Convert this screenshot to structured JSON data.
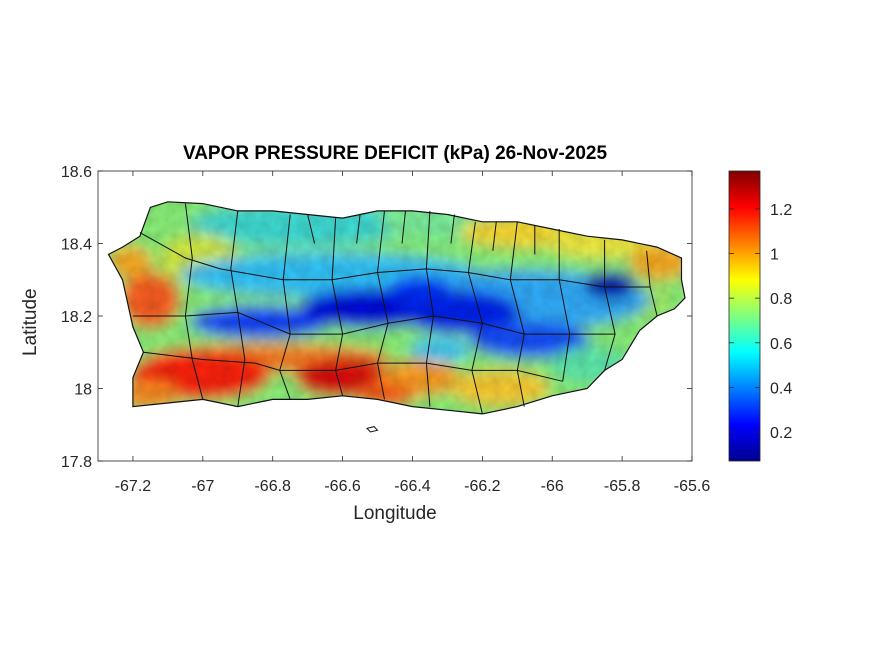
{
  "figure": {
    "title": "VAPOR PRESSURE DEFICIT (kPa) 26-Nov-2025",
    "xlabel": "Longitude",
    "ylabel": "Latitude"
  },
  "chart_data": {
    "type": "heatmap",
    "title": "VAPOR PRESSURE DEFICIT (kPa) 26-Nov-2025",
    "xlabel": "Longitude",
    "ylabel": "Latitude",
    "xlim": [
      -67.3,
      -65.6
    ],
    "ylim": [
      17.8,
      18.6
    ],
    "x_ticks": [
      -67.2,
      -67,
      -66.8,
      -66.6,
      -66.4,
      -66.2,
      -66,
      -65.8,
      -65.6
    ],
    "x_tick_labels": [
      "-67.2",
      "-67",
      "-66.8",
      "-66.6",
      "-66.4",
      "-66.2",
      "-66",
      "-65.8",
      "-65.6"
    ],
    "y_ticks": [
      17.8,
      18,
      18.2,
      18.4,
      18.6
    ],
    "y_tick_labels": [
      "17.8",
      "18",
      "18.2",
      "18.4",
      "18.6"
    ],
    "colorbar": {
      "colormap": "jet",
      "range": [
        0.07,
        1.37
      ],
      "ticks": [
        0.2,
        0.4,
        0.6,
        0.8,
        1,
        1.2
      ],
      "tick_labels": [
        "0.2",
        "0.4",
        "0.6",
        "0.8",
        "1",
        "1.2"
      ]
    },
    "grid": false,
    "island_outline": [
      [
        -67.27,
        18.37
      ],
      [
        -67.23,
        18.39
      ],
      [
        -67.18,
        18.42
      ],
      [
        -67.15,
        18.5
      ],
      [
        -67.1,
        18.515
      ],
      [
        -67.0,
        18.51
      ],
      [
        -66.9,
        18.49
      ],
      [
        -66.8,
        18.49
      ],
      [
        -66.7,
        18.48
      ],
      [
        -66.6,
        18.47
      ],
      [
        -66.5,
        18.49
      ],
      [
        -66.4,
        18.49
      ],
      [
        -66.3,
        18.48
      ],
      [
        -66.2,
        18.46
      ],
      [
        -66.1,
        18.46
      ],
      [
        -66.0,
        18.44
      ],
      [
        -65.9,
        18.42
      ],
      [
        -65.8,
        18.41
      ],
      [
        -65.7,
        18.39
      ],
      [
        -65.63,
        18.36
      ],
      [
        -65.63,
        18.3
      ],
      [
        -65.62,
        18.25
      ],
      [
        -65.65,
        18.22
      ],
      [
        -65.7,
        18.2
      ],
      [
        -65.75,
        18.16
      ],
      [
        -65.8,
        18.08
      ],
      [
        -65.85,
        18.05
      ],
      [
        -65.9,
        18.0
      ],
      [
        -66.0,
        17.98
      ],
      [
        -66.1,
        17.95
      ],
      [
        -66.2,
        17.93
      ],
      [
        -66.3,
        17.94
      ],
      [
        -66.4,
        17.95
      ],
      [
        -66.5,
        17.97
      ],
      [
        -66.6,
        17.98
      ],
      [
        -66.7,
        17.97
      ],
      [
        -66.8,
        17.97
      ],
      [
        -66.9,
        17.95
      ],
      [
        -67.0,
        17.97
      ],
      [
        -67.1,
        17.96
      ],
      [
        -67.2,
        17.95
      ],
      [
        -67.2,
        18.03
      ],
      [
        -67.17,
        18.1
      ],
      [
        -67.2,
        18.17
      ],
      [
        -67.23,
        18.3
      ],
      [
        -67.27,
        18.37
      ]
    ],
    "small_islet": [
      [
        -66.53,
        17.89
      ],
      [
        -66.51,
        17.895
      ],
      [
        -66.5,
        17.885
      ],
      [
        -66.52,
        17.88
      ]
    ],
    "municipal_boundaries": [
      [
        [
          -67.18,
          18.43
        ],
        [
          -67.05,
          18.36
        ],
        [
          -66.95,
          18.33
        ]
      ],
      [
        [
          -67.2,
          18.2
        ],
        [
          -67.05,
          18.2
        ],
        [
          -66.9,
          18.21
        ]
      ],
      [
        [
          -67.17,
          18.1
        ],
        [
          -67.0,
          18.08
        ],
        [
          -66.85,
          18.07
        ]
      ],
      [
        [
          -67.05,
          18.51
        ],
        [
          -67.03,
          18.36
        ],
        [
          -67.05,
          18.2
        ],
        [
          -67.03,
          18.08
        ],
        [
          -67.0,
          17.97
        ]
      ],
      [
        [
          -66.9,
          18.49
        ],
        [
          -66.92,
          18.33
        ],
        [
          -66.9,
          18.21
        ],
        [
          -66.88,
          18.08
        ],
        [
          -66.9,
          17.95
        ]
      ],
      [
        [
          -66.75,
          18.48
        ],
        [
          -66.77,
          18.3
        ],
        [
          -66.75,
          18.15
        ],
        [
          -66.78,
          18.05
        ],
        [
          -66.75,
          17.97
        ]
      ],
      [
        [
          -66.62,
          18.47
        ],
        [
          -66.63,
          18.3
        ],
        [
          -66.6,
          18.15
        ],
        [
          -66.62,
          18.05
        ],
        [
          -66.6,
          17.98
        ]
      ],
      [
        [
          -66.48,
          18.49
        ],
        [
          -66.5,
          18.32
        ],
        [
          -66.47,
          18.18
        ],
        [
          -66.5,
          18.07
        ],
        [
          -66.48,
          17.97
        ]
      ],
      [
        [
          -66.35,
          18.49
        ],
        [
          -66.36,
          18.33
        ],
        [
          -66.34,
          18.2
        ],
        [
          -66.36,
          18.07
        ],
        [
          -66.35,
          17.95
        ]
      ],
      [
        [
          -66.22,
          18.46
        ],
        [
          -66.24,
          18.32
        ],
        [
          -66.2,
          18.18
        ],
        [
          -66.23,
          18.05
        ],
        [
          -66.2,
          17.93
        ]
      ],
      [
        [
          -66.1,
          18.46
        ],
        [
          -66.12,
          18.3
        ],
        [
          -66.08,
          18.15
        ],
        [
          -66.1,
          18.05
        ],
        [
          -66.08,
          17.95
        ]
      ],
      [
        [
          -65.98,
          18.44
        ],
        [
          -65.98,
          18.3
        ],
        [
          -65.95,
          18.15
        ],
        [
          -65.97,
          18.02
        ]
      ],
      [
        [
          -65.85,
          18.41
        ],
        [
          -65.85,
          18.28
        ],
        [
          -65.82,
          18.15
        ],
        [
          -65.85,
          18.05
        ]
      ],
      [
        [
          -65.73,
          18.38
        ],
        [
          -65.72,
          18.28
        ],
        [
          -65.7,
          18.2
        ]
      ],
      [
        [
          -66.95,
          18.33
        ],
        [
          -66.77,
          18.3
        ],
        [
          -66.63,
          18.3
        ],
        [
          -66.5,
          18.32
        ],
        [
          -66.36,
          18.33
        ],
        [
          -66.24,
          18.32
        ],
        [
          -66.12,
          18.3
        ],
        [
          -65.98,
          18.3
        ],
        [
          -65.85,
          18.28
        ],
        [
          -65.72,
          18.28
        ]
      ],
      [
        [
          -66.9,
          18.21
        ],
        [
          -66.75,
          18.15
        ],
        [
          -66.6,
          18.15
        ],
        [
          -66.47,
          18.18
        ],
        [
          -66.34,
          18.2
        ],
        [
          -66.2,
          18.18
        ],
        [
          -66.08,
          18.15
        ],
        [
          -65.95,
          18.15
        ],
        [
          -65.82,
          18.15
        ]
      ],
      [
        [
          -66.85,
          18.07
        ],
        [
          -66.78,
          18.05
        ],
        [
          -66.62,
          18.05
        ],
        [
          -66.5,
          18.07
        ],
        [
          -66.36,
          18.07
        ],
        [
          -66.23,
          18.05
        ],
        [
          -66.1,
          18.05
        ],
        [
          -65.97,
          18.02
        ]
      ],
      [
        [
          -66.7,
          18.48
        ],
        [
          -66.68,
          18.4
        ]
      ],
      [
        [
          -66.55,
          18.48
        ],
        [
          -66.56,
          18.4
        ]
      ],
      [
        [
          -66.42,
          18.49
        ],
        [
          -66.43,
          18.4
        ]
      ],
      [
        [
          -66.28,
          18.48
        ],
        [
          -66.29,
          18.4
        ]
      ],
      [
        [
          -66.16,
          18.46
        ],
        [
          -66.17,
          18.38
        ]
      ],
      [
        [
          -66.05,
          18.45
        ],
        [
          -66.05,
          18.37
        ]
      ]
    ]
  }
}
